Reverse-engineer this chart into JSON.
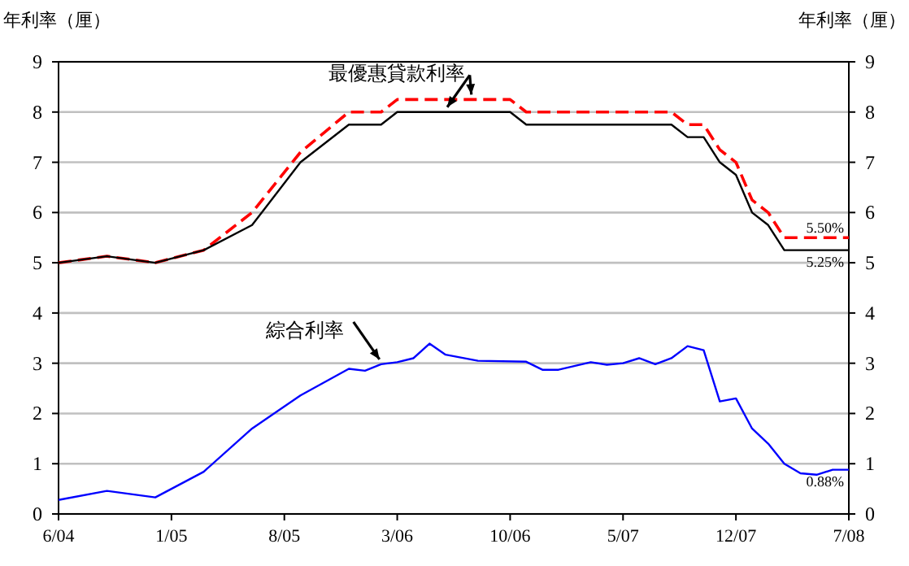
{
  "chart_data": {
    "type": "line",
    "ylabel": "年利率（厘）",
    "y2label": "年利率（厘）",
    "xlim": [
      "2004-06",
      "2008-07"
    ],
    "xticks": [
      {
        "value": "2004-06",
        "label": "6/04"
      },
      {
        "value": "2005-01",
        "label": "1/05"
      },
      {
        "value": "2005-08",
        "label": "8/05"
      },
      {
        "value": "2006-03",
        "label": "3/06"
      },
      {
        "value": "2006-10",
        "label": "10/06"
      },
      {
        "value": "2007-05",
        "label": "5/07"
      },
      {
        "value": "2007-12",
        "label": "12/07"
      },
      {
        "value": "2008-07",
        "label": "7/08"
      }
    ],
    "ylim": [
      0,
      9
    ],
    "yticks": [
      0,
      1,
      2,
      3,
      4,
      5,
      6,
      7,
      8,
      9
    ],
    "y2lim": [
      0,
      9
    ],
    "y2ticks": [
      0,
      1,
      2,
      3,
      4,
      5,
      6,
      7,
      8,
      9
    ],
    "grid": "y",
    "marker": "none",
    "series": [
      {
        "color": "#ff0000",
        "line_style": "dashed",
        "x": [
          "2004-06",
          "2004-09",
          "2004-12",
          "2005-03",
          "2005-06",
          "2005-09",
          "2005-12",
          "2006-02",
          "2006-03",
          "2006-10",
          "2006-11",
          "2007-08",
          "2007-09",
          "2007-10",
          "2007-11",
          "2007-12",
          "2008-01",
          "2008-02",
          "2008-03",
          "2008-07"
        ],
        "values": [
          5.0,
          5.13,
          5.0,
          5.25,
          6.0,
          7.2,
          8.0,
          8.0,
          8.25,
          8.25,
          8.0,
          8.0,
          7.75,
          7.75,
          7.25,
          7.0,
          6.25,
          6.0,
          5.5,
          5.5
        ]
      },
      {
        "color": "#000000",
        "line_style": "solid",
        "x": [
          "2004-06",
          "2004-09",
          "2004-12",
          "2005-03",
          "2005-06",
          "2005-09",
          "2005-12",
          "2006-02",
          "2006-03",
          "2006-10",
          "2006-11",
          "2007-08",
          "2007-09",
          "2007-10",
          "2007-11",
          "2007-12",
          "2008-01",
          "2008-02",
          "2008-03",
          "2008-07"
        ],
        "values": [
          5.0,
          5.13,
          5.0,
          5.25,
          5.75,
          7.0,
          7.75,
          7.75,
          8.0,
          8.0,
          7.75,
          7.75,
          7.5,
          7.5,
          7.0,
          6.75,
          6.0,
          5.75,
          5.25,
          5.25
        ]
      },
      {
        "color": "#0000ff",
        "line_style": "solid",
        "x": [
          "2004-06",
          "2004-09",
          "2004-12",
          "2005-03",
          "2005-06",
          "2005-09",
          "2005-12",
          "2006-01",
          "2006-02",
          "2006-03",
          "2006-04",
          "2006-05",
          "2006-06",
          "2006-08",
          "2006-11",
          "2006-12",
          "2007-01",
          "2007-03",
          "2007-04",
          "2007-05",
          "2007-06",
          "2007-07",
          "2007-08",
          "2007-09",
          "2007-10",
          "2007-11",
          "2007-12",
          "2008-01",
          "2008-02",
          "2008-03",
          "2008-04",
          "2008-05",
          "2008-06",
          "2008-07"
        ],
        "values": [
          0.28,
          0.46,
          0.33,
          0.84,
          1.7,
          2.36,
          2.89,
          2.85,
          2.98,
          3.02,
          3.1,
          3.39,
          3.17,
          3.05,
          3.03,
          2.87,
          2.87,
          3.02,
          2.97,
          3.0,
          3.1,
          2.98,
          3.1,
          3.34,
          3.26,
          2.24,
          2.3,
          1.7,
          1.4,
          1.0,
          0.81,
          0.78,
          0.88,
          0.88
        ]
      }
    ],
    "annotations": [
      {
        "text": "最優惠貸款利率",
        "x": "2006-08",
        "y": 8.25
      },
      {
        "text": "綜合利率",
        "x": "2006-02",
        "y": 2.98
      },
      {
        "text": "5.50%",
        "x": "2008-07",
        "y": 5.5
      },
      {
        "text": "5.25%",
        "x": "2008-07",
        "y": 5.25
      },
      {
        "text": "0.88%",
        "x": "2008-07",
        "y": 0.88
      }
    ]
  }
}
